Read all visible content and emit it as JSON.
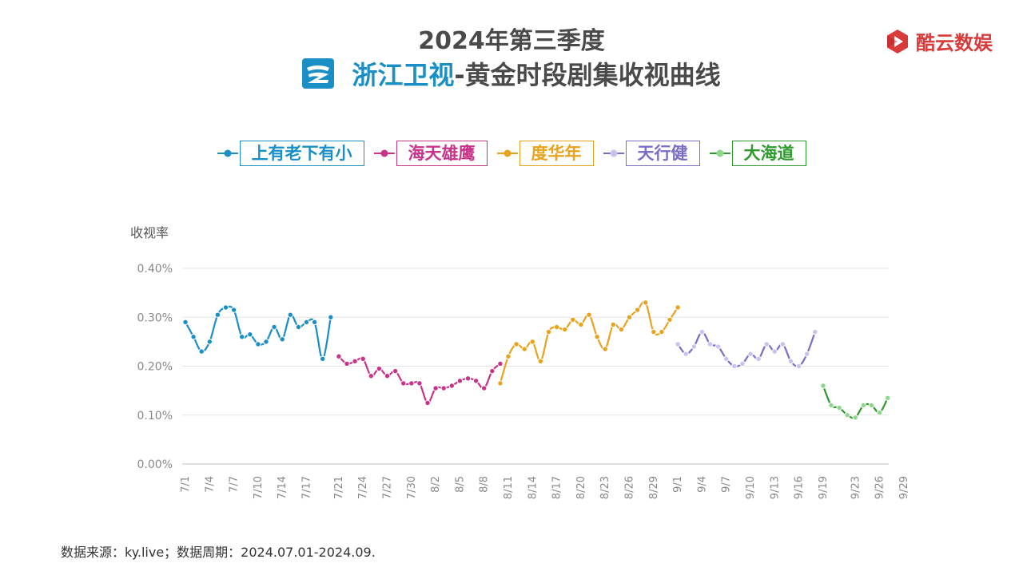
{
  "header": {
    "title": "2024年第三季度",
    "subtitle_channel": "浙江卫视",
    "subtitle_rest": "-黄金时段剧集收视曲线"
  },
  "brand": {
    "name": "酷云数娱",
    "icon": "play-logo-icon",
    "color": "#d93a3a"
  },
  "channel_logo": {
    "icon": "zhejiang-tv-logo-icon",
    "color": "#1a8fc6"
  },
  "footer": {
    "text": "数据来源：ky.live；数据周期：2024.07.01-2024.09."
  },
  "chart_data": {
    "type": "line",
    "title": "2024年第三季度",
    "subtitle": "浙江卫视-黄金时段剧集收视曲线",
    "ylabel": "收视率",
    "xlabel": "",
    "ylim": [
      0,
      0.4
    ],
    "y_ticks": [
      "0.00%",
      "0.10%",
      "0.20%",
      "0.30%",
      "0.40%"
    ],
    "y_tick_values": [
      0,
      0.1,
      0.2,
      0.3,
      0.4
    ],
    "x_tick_labels": [
      "7/1",
      "7/4",
      "7/7",
      "7/10",
      "7/14",
      "7/17",
      "7/21",
      "7/24",
      "7/27",
      "7/30",
      "8/2",
      "8/5",
      "8/8",
      "8/11",
      "8/14",
      "8/17",
      "8/20",
      "8/23",
      "8/26",
      "8/29",
      "9/1",
      "9/4",
      "9/7",
      "9/10",
      "9/13",
      "9/16",
      "9/19",
      "9/23",
      "9/26",
      "9/29"
    ],
    "y_unit": "%",
    "grid": true,
    "legend_position": "top",
    "series": [
      {
        "name": "上有老下有小",
        "color": "#1a8fc6",
        "values": [
          0.29,
          0.26,
          0.23,
          0.25,
          0.305,
          0.32,
          0.315,
          0.26,
          0.265,
          0.245,
          0.25,
          0.28,
          0.255,
          0.305,
          0.28,
          0.29,
          0.29,
          0.215,
          0.3
        ]
      },
      {
        "name": "海天雄鹰",
        "color": "#c8338a",
        "values": [
          0.22,
          0.205,
          0.21,
          0.215,
          0.18,
          0.195,
          0.18,
          0.19,
          0.165,
          0.165,
          0.165,
          0.125,
          0.155,
          0.155,
          0.16,
          0.17,
          0.175,
          0.17,
          0.155,
          0.19,
          0.205
        ]
      },
      {
        "name": "度华年",
        "color": "#e8a21c",
        "values": [
          0.165,
          0.22,
          0.245,
          0.235,
          0.25,
          0.21,
          0.27,
          0.28,
          0.275,
          0.295,
          0.285,
          0.305,
          0.26,
          0.235,
          0.285,
          0.275,
          0.3,
          0.315,
          0.33,
          0.27,
          0.27,
          0.295,
          0.32
        ]
      },
      {
        "name": "天行健",
        "color": "#7b6cc4",
        "values": [
          0.245,
          0.225,
          0.24,
          0.27,
          0.245,
          0.24,
          0.215,
          0.2,
          0.205,
          0.225,
          0.215,
          0.245,
          0.23,
          0.245,
          0.21,
          0.2,
          0.225,
          0.27
        ]
      },
      {
        "name": "大海道",
        "color": "#2e9a2e",
        "values": [
          0.16,
          0.12,
          0.115,
          0.1,
          0.095,
          0.12,
          0.12,
          0.105,
          0.135
        ]
      }
    ]
  }
}
